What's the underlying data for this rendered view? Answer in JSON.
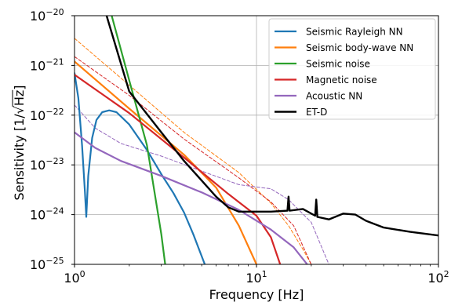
{
  "chart_data": {
    "type": "line",
    "xlabel": "Frequency [Hz]",
    "ylabel_prefix": "Sensitivity [1/",
    "ylabel_radical": "√",
    "ylabel_unit": "Hz",
    "ylabel_suffix": "]",
    "x_scale": "log",
    "y_scale": "log",
    "xlim": [
      1,
      100
    ],
    "ylim": [
      1e-25,
      1e-20
    ],
    "grid": true,
    "legend_position": "top-right",
    "x_ticks": [
      {
        "value": 1,
        "base": "10",
        "exp": "0"
      },
      {
        "value": 10,
        "base": "10",
        "exp": "1"
      },
      {
        "value": 100,
        "base": "10",
        "exp": "2"
      }
    ],
    "y_ticks": [
      {
        "value": 1e-25,
        "base": "10",
        "exp": "−25"
      },
      {
        "value": 1e-24,
        "base": "10",
        "exp": "−24"
      },
      {
        "value": 1e-23,
        "base": "10",
        "exp": "−23"
      },
      {
        "value": 1e-22,
        "base": "10",
        "exp": "−22"
      },
      {
        "value": 1e-21,
        "base": "10",
        "exp": "−21"
      },
      {
        "value": 1e-20,
        "base": "10",
        "exp": "−20"
      }
    ],
    "series": [
      {
        "name": "Seismic Rayleigh NN",
        "color": "#1f77b4",
        "style": "solid",
        "in_legend": true,
        "points": [
          [
            1.0,
            7e-22
          ],
          [
            1.05,
            2.2e-22
          ],
          [
            1.1,
            2.5e-23
          ],
          [
            1.14,
            3e-24
          ],
          [
            1.16,
            9e-25
          ],
          [
            1.19,
            6e-24
          ],
          [
            1.25,
            3.5e-23
          ],
          [
            1.32,
            8e-23
          ],
          [
            1.42,
            1.15e-22
          ],
          [
            1.55,
            1.25e-22
          ],
          [
            1.7,
            1.15e-22
          ],
          [
            2.0,
            6.5e-23
          ],
          [
            2.5,
            2e-23
          ],
          [
            3.0,
            6.5e-24
          ],
          [
            3.5,
            2.7e-24
          ],
          [
            4.0,
            1.1e-24
          ],
          [
            4.5,
            4e-25
          ],
          [
            5.2,
            1e-25
          ]
        ]
      },
      {
        "name": "Seismic body-wave NN",
        "color": "#ff7f0e",
        "style": "solid",
        "in_legend": true,
        "points": [
          [
            1.0,
            1.2e-21
          ],
          [
            2.0,
            1.35e-22
          ],
          [
            4.0,
            1.6e-23
          ],
          [
            6.0,
            3.5e-24
          ],
          [
            8.0,
            6e-25
          ],
          [
            10.0,
            1e-25
          ]
        ]
      },
      {
        "name": "Seismic noise",
        "color": "#2ca02c",
        "style": "solid",
        "in_legend": true,
        "points": [
          [
            1.6,
            1e-20
          ],
          [
            2.0,
            5e-22
          ],
          [
            2.5,
            2.5e-23
          ],
          [
            3.0,
            4e-25
          ],
          [
            3.15,
            1e-25
          ]
        ]
      },
      {
        "name": "Magnetic noise",
        "color": "#d62728",
        "style": "solid",
        "in_legend": true,
        "points": [
          [
            1.0,
            6.5e-22
          ],
          [
            2.0,
            1.1e-22
          ],
          [
            4.0,
            1.4e-23
          ],
          [
            7.0,
            2.6e-24
          ],
          [
            10.0,
            9.5e-25
          ],
          [
            12.0,
            3.5e-25
          ],
          [
            13.5,
            1e-25
          ]
        ]
      },
      {
        "name": "Acoustic NN",
        "color": "#9467bd",
        "style": "solid",
        "in_legend": true,
        "points": [
          [
            1.0,
            4.5e-23
          ],
          [
            1.3,
            2.2e-23
          ],
          [
            1.8,
            1.2e-23
          ],
          [
            3.0,
            6e-24
          ],
          [
            5.0,
            2.8e-24
          ],
          [
            8.0,
            1.25e-24
          ],
          [
            12.0,
            5e-25
          ],
          [
            16.0,
            2.2e-25
          ],
          [
            19.0,
            1e-25
          ]
        ]
      },
      {
        "name": "ET-D",
        "color": "#000000",
        "style": "solid",
        "in_legend": true,
        "points": [
          [
            1.5,
            1e-20
          ],
          [
            2.0,
            3e-22
          ],
          [
            3.0,
            4.5e-23
          ],
          [
            4.0,
            1.2e-23
          ],
          [
            6.0,
            2.3e-24
          ],
          [
            7.0,
            1.4e-24
          ],
          [
            8.0,
            1.15e-24
          ],
          [
            12.0,
            1.15e-24
          ],
          [
            14.8,
            1.2e-24
          ],
          [
            15.0,
            2.3e-24
          ],
          [
            15.2,
            1.2e-24
          ],
          [
            18.0,
            1.3e-24
          ],
          [
            21.0,
            9.5e-25
          ],
          [
            21.3,
            2e-24
          ],
          [
            21.6,
            9e-25
          ],
          [
            25.0,
            8e-25
          ],
          [
            30.0,
            1.05e-24
          ],
          [
            35.0,
            1e-24
          ],
          [
            40.0,
            7.5e-25
          ],
          [
            50.0,
            5.5e-25
          ],
          [
            70.0,
            4.5e-25
          ],
          [
            100.0,
            3.8e-25
          ]
        ]
      },
      {
        "name": "",
        "color": "#ff7f0e",
        "style": "dashed",
        "in_legend": false,
        "points": [
          [
            1.0,
            3.5e-21
          ],
          [
            2.0,
            4e-22
          ],
          [
            4.0,
            4.5e-23
          ],
          [
            8.0,
            7e-24
          ],
          [
            12.0,
            1.7e-24
          ],
          [
            15.0,
            6e-25
          ],
          [
            18.0,
            2e-25
          ],
          [
            20.0,
            1e-25
          ]
        ]
      },
      {
        "name": "",
        "color": "#d62728",
        "style": "dashed",
        "in_legend": false,
        "points": [
          [
            1.0,
            1.5e-21
          ],
          [
            2.0,
            2.5e-22
          ],
          [
            4.0,
            3.3e-23
          ],
          [
            8.0,
            5.5e-24
          ],
          [
            12.0,
            1.8e-24
          ],
          [
            16.0,
            6e-25
          ],
          [
            20.0,
            1e-25
          ]
        ]
      },
      {
        "name": "",
        "color": "#9467bd",
        "style": "dashed",
        "in_legend": false,
        "points": [
          [
            1.0,
            1.6e-22
          ],
          [
            1.3,
            5.5e-23
          ],
          [
            1.8,
            2.7e-23
          ],
          [
            3.0,
            1.5e-23
          ],
          [
            5.0,
            7.5e-24
          ],
          [
            8.0,
            4e-24
          ],
          [
            12.0,
            3.3e-24
          ],
          [
            15.0,
            2e-24
          ],
          [
            20.0,
            7e-25
          ],
          [
            25.0,
            1e-25
          ]
        ]
      }
    ]
  }
}
